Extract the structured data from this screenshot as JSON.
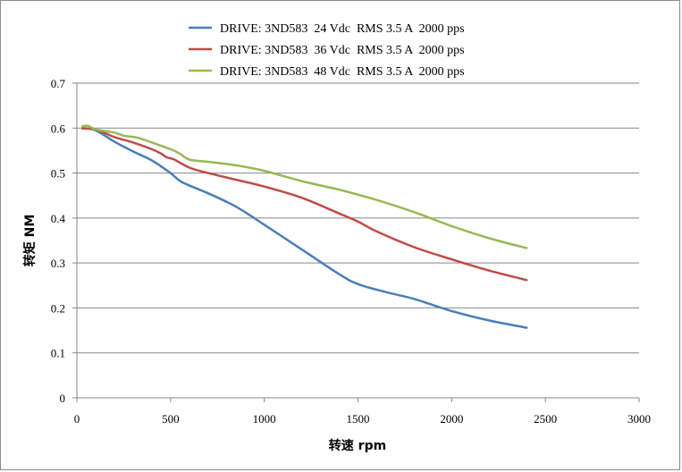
{
  "chart_data": {
    "type": "line",
    "xlabel": "转速 rpm",
    "ylabel": "转矩 NM",
    "xlim": [
      0,
      3000
    ],
    "ylim": [
      0,
      0.7
    ],
    "xticks": [
      0,
      500,
      1000,
      1500,
      2000,
      2500,
      3000
    ],
    "yticks": [
      0,
      0.1,
      0.2,
      0.3,
      0.4,
      0.5,
      0.6,
      0.7
    ],
    "xtick_labels": [
      "0",
      "500",
      "1000",
      "1500",
      "2000",
      "2500",
      "3000"
    ],
    "ytick_labels": [
      "0",
      "0.1",
      "0.2",
      "0.3",
      "0.4",
      "0.5",
      "0.6",
      "0.7"
    ],
    "grid": "horizontal",
    "legend_position": "top-center",
    "series": [
      {
        "name": "DRIVE: 3ND583  24 Vdc  RMS 3.5 A  2000 pps",
        "color": "#4a7ebb",
        "points": [
          [
            30,
            0.6
          ],
          [
            100,
            0.595
          ],
          [
            200,
            0.57
          ],
          [
            300,
            0.548
          ],
          [
            400,
            0.528
          ],
          [
            500,
            0.5
          ],
          [
            560,
            0.48
          ],
          [
            700,
            0.455
          ],
          [
            850,
            0.425
          ],
          [
            1000,
            0.385
          ],
          [
            1200,
            0.33
          ],
          [
            1400,
            0.275
          ],
          [
            1500,
            0.253
          ],
          [
            1650,
            0.235
          ],
          [
            1800,
            0.22
          ],
          [
            2000,
            0.193
          ],
          [
            2200,
            0.172
          ],
          [
            2400,
            0.156
          ]
        ]
      },
      {
        "name": "DRIVE: 3ND583  36 Vdc  RMS 3.5 A  2000 pps",
        "color": "#be4b48",
        "points": [
          [
            30,
            0.599
          ],
          [
            100,
            0.597
          ],
          [
            200,
            0.58
          ],
          [
            300,
            0.568
          ],
          [
            400,
            0.553
          ],
          [
            450,
            0.543
          ],
          [
            480,
            0.535
          ],
          [
            520,
            0.53
          ],
          [
            600,
            0.512
          ],
          [
            700,
            0.5
          ],
          [
            850,
            0.485
          ],
          [
            1000,
            0.47
          ],
          [
            1200,
            0.445
          ],
          [
            1400,
            0.41
          ],
          [
            1500,
            0.392
          ],
          [
            1600,
            0.37
          ],
          [
            1800,
            0.335
          ],
          [
            2000,
            0.308
          ],
          [
            2200,
            0.283
          ],
          [
            2400,
            0.262
          ]
        ]
      },
      {
        "name": "DRIVE: 3ND583  48 Vdc  RMS 3.5 A  2000 pps",
        "color": "#98b954",
        "points": [
          [
            30,
            0.604
          ],
          [
            60,
            0.605
          ],
          [
            100,
            0.597
          ],
          [
            200,
            0.59
          ],
          [
            250,
            0.583
          ],
          [
            320,
            0.579
          ],
          [
            400,
            0.568
          ],
          [
            500,
            0.553
          ],
          [
            550,
            0.543
          ],
          [
            600,
            0.53
          ],
          [
            700,
            0.525
          ],
          [
            850,
            0.517
          ],
          [
            1000,
            0.505
          ],
          [
            1200,
            0.482
          ],
          [
            1400,
            0.463
          ],
          [
            1600,
            0.44
          ],
          [
            1800,
            0.413
          ],
          [
            2000,
            0.382
          ],
          [
            2200,
            0.355
          ],
          [
            2400,
            0.333
          ]
        ]
      }
    ]
  }
}
